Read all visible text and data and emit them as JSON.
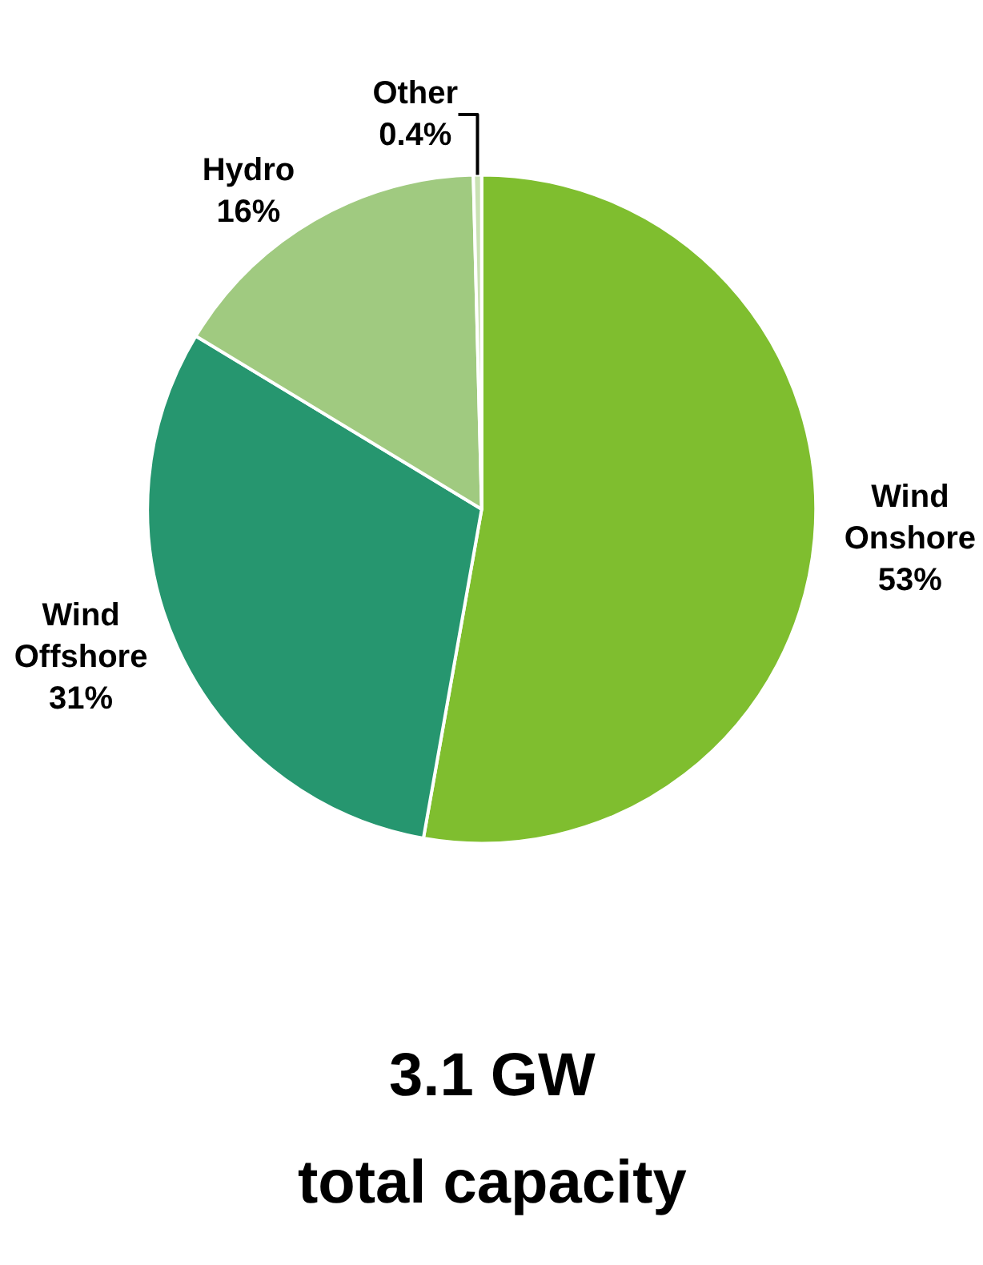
{
  "chart_data": {
    "type": "pie",
    "categories": [
      "Wind Onshore",
      "Wind Offshore",
      "Hydro",
      "Other"
    ],
    "values": [
      53,
      31,
      16,
      0.4
    ],
    "value_labels": [
      "53%",
      "31%",
      "16%",
      "0.4%"
    ],
    "colors": [
      "#7fbe2f",
      "#26966f",
      "#a0ca80",
      "#c9e1b3"
    ],
    "annotations": [
      "3.1 GW",
      "total capacity"
    ],
    "legend": false
  }
}
